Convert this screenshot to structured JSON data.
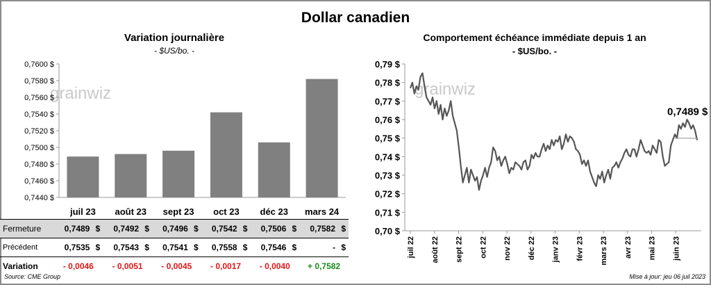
{
  "title": "Dollar canadien",
  "left": {
    "title": "Variation  journalière",
    "unit": "- $US/bo. -",
    "watermark": "grainwiz",
    "chart_data": {
      "type": "bar",
      "categories": [
        "juil 23",
        "août 23",
        "sept 23",
        "oct 23",
        "déc 23",
        "mars 24"
      ],
      "values": [
        0.7489,
        0.7492,
        0.7496,
        0.7542,
        0.7506,
        0.7582
      ],
      "ylim": [
        0.744,
        0.76
      ],
      "yticks": [
        0.744,
        0.746,
        0.748,
        0.75,
        0.752,
        0.754,
        0.756,
        0.758,
        0.76
      ],
      "ytick_labels": [
        "0,7440 $",
        "0,7460 $",
        "0,7480 $",
        "0,7500 $",
        "0,7520 $",
        "0,7540 $",
        "0,7560 $",
        "0,7580 $",
        "0,7600 $"
      ],
      "bar_color": "#808080"
    },
    "table": {
      "close_label": "Fermeture",
      "prev_label": "Précédent",
      "var_label": "Variation",
      "currency": "$",
      "close": [
        "0,7489",
        "0,7492",
        "0,7496",
        "0,7542",
        "0,7506",
        "0,7582"
      ],
      "prev": [
        "0,7535",
        "0,7543",
        "0,7541",
        "0,7558",
        "0,7546",
        "-"
      ],
      "variation": [
        "- 0,0046",
        "- 0,0051",
        "- 0,0045",
        "- 0,0017",
        "- 0,0040",
        "+ 0,7582"
      ]
    }
  },
  "right": {
    "title": "Comportement échéance immédiate depuis 1 an",
    "unit": "- $US/bo. -",
    "watermark": "grainwiz",
    "last_label": "0,7489 $",
    "chart_data": {
      "type": "line",
      "ylim": [
        0.7,
        0.79
      ],
      "yticks": [
        0.7,
        0.71,
        0.72,
        0.73,
        0.74,
        0.75,
        0.76,
        0.77,
        0.78,
        0.79
      ],
      "ytick_labels": [
        "0,70 $",
        "0,71 $",
        "0,72 $",
        "0,73 $",
        "0,74 $",
        "0,75 $",
        "0,76 $",
        "0,77 $",
        "0,78 $",
        "0,79 $"
      ],
      "xticks": [
        "juil 22",
        "août 22",
        "sept 22",
        "oct 22",
        "nov 22",
        "déc 22",
        "janv 23",
        "févr 23",
        "mars 23",
        "avr 23",
        "mai 23",
        "juin 23"
      ],
      "series": [
        {
          "values": [
            0.777,
            0.78,
            0.774,
            0.778,
            0.776,
            0.783,
            0.785,
            0.778,
            0.772,
            0.77,
            0.768,
            0.772,
            0.766,
            0.77,
            0.763,
            0.768,
            0.76,
            0.766,
            0.762,
            0.765,
            0.77,
            0.762,
            0.758,
            0.754,
            0.745,
            0.735,
            0.726,
            0.73,
            0.734,
            0.726,
            0.733,
            0.73,
            0.727,
            0.729,
            0.722,
            0.727,
            0.73,
            0.734,
            0.729,
            0.734,
            0.737,
            0.745,
            0.743,
            0.738,
            0.74,
            0.735,
            0.738,
            0.74,
            0.736,
            0.731,
            0.734,
            0.733,
            0.737,
            0.736,
            0.735,
            0.733,
            0.737,
            0.738,
            0.733,
            0.735,
            0.741,
            0.739,
            0.742,
            0.74,
            0.74,
            0.744,
            0.747,
            0.743,
            0.746,
            0.744,
            0.749,
            0.746,
            0.749,
            0.748,
            0.751,
            0.744,
            0.747,
            0.752,
            0.748,
            0.751,
            0.75,
            0.748,
            0.744,
            0.743,
            0.741,
            0.736,
            0.738,
            0.735,
            0.738,
            0.732,
            0.729,
            0.726,
            0.724,
            0.73,
            0.728,
            0.732,
            0.726,
            0.73,
            0.733,
            0.728,
            0.734,
            0.735,
            0.737,
            0.734,
            0.737,
            0.739,
            0.742,
            0.744,
            0.741,
            0.74,
            0.744,
            0.744,
            0.74,
            0.744,
            0.749,
            0.746,
            0.743,
            0.742,
            0.743,
            0.741,
            0.746,
            0.744,
            0.742,
            0.749,
            0.748,
            0.74,
            0.735,
            0.736,
            0.737,
            0.746,
            0.749,
            0.752,
            0.75,
            0.757,
            0.755,
            0.758,
            0.756,
            0.76,
            0.758,
            0.755,
            0.757,
            0.754,
            0.7489
          ],
          "color": "#555555"
        }
      ],
      "trend_color": "#9e9e9e"
    }
  },
  "footer": {
    "source": "Source: CME Group",
    "updated": "Mise à jour: jeu 06 juil 2023"
  }
}
